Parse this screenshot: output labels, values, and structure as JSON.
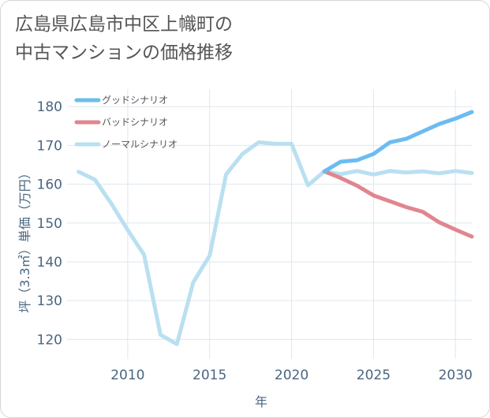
{
  "title": {
    "line1": "広島県広島市中区上幟町の",
    "line2": "中古マンションの価格推移"
  },
  "chart_data": {
    "type": "line",
    "xlabel": "年",
    "ylabel": "坪（3.3㎡）単価（万円）",
    "xlim": [
      2006.3,
      2031
    ],
    "ylim": [
      115,
      184.5
    ],
    "xticks": [
      2010,
      2015,
      2020,
      2025,
      2030
    ],
    "yticks": [
      120,
      130,
      140,
      150,
      160,
      170,
      180
    ],
    "grid": true,
    "legend_position": "top-left",
    "series": [
      {
        "name": "グッドシナリオ",
        "color": "#6bbcf0",
        "x": [
          2022,
          2023,
          2024,
          2025,
          2026,
          2027,
          2028,
          2029,
          2030,
          2031
        ],
        "values": [
          163.3,
          165.8,
          166.2,
          167.8,
          170.8,
          171.7,
          173.6,
          175.5,
          176.9,
          178.6
        ]
      },
      {
        "name": "バッドシナリオ",
        "color": "#e0868f",
        "x": [
          2022,
          2023,
          2024,
          2025,
          2026,
          2027,
          2028,
          2029,
          2030,
          2031
        ],
        "values": [
          163.3,
          161.6,
          159.6,
          157.1,
          155.6,
          154.1,
          152.9,
          150.2,
          148.3,
          146.5
        ]
      },
      {
        "name": "ノーマルシナリオ",
        "color": "#b9e0f0",
        "x": [
          2007,
          2008,
          2009,
          2010,
          2011,
          2012,
          2013,
          2014,
          2015,
          2016,
          2017,
          2018,
          2019,
          2020,
          2021,
          2022,
          2023,
          2024,
          2025,
          2026,
          2027,
          2028,
          2029,
          2030,
          2031
        ],
        "values": [
          163.2,
          161.2,
          155.0,
          148.2,
          141.8,
          121.2,
          118.8,
          134.7,
          141.6,
          162.5,
          167.8,
          170.8,
          170.4,
          170.4,
          159.7,
          163.3,
          162.6,
          163.4,
          162.5,
          163.4,
          163.0,
          163.3,
          162.8,
          163.4,
          162.9
        ]
      }
    ]
  }
}
